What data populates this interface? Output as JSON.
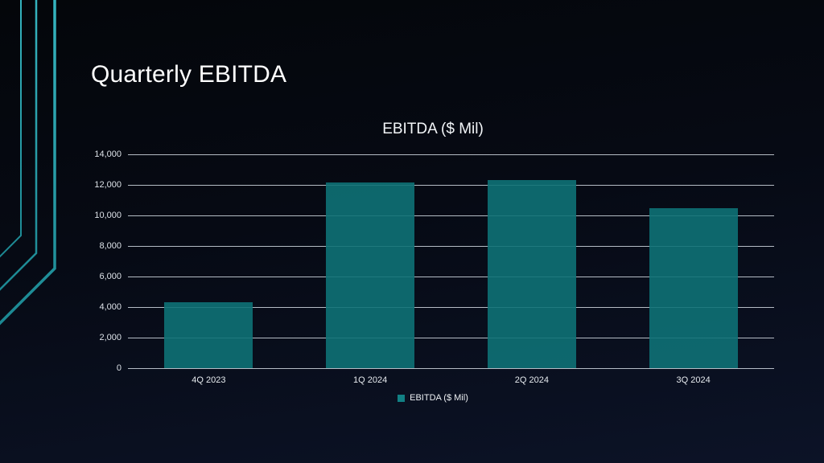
{
  "slide": {
    "title": "Quarterly EBITDA"
  },
  "chart_data": {
    "type": "bar",
    "title": "EBITDA ($ Mil)",
    "categories": [
      "4Q 2023",
      "1Q 2024",
      "2Q 2024",
      "3Q 2024"
    ],
    "values": [
      4300,
      12150,
      12300,
      10450
    ],
    "series_name": "EBITDA ($ Mil)",
    "xlabel": "",
    "ylabel": "",
    "ylim": [
      0,
      14000
    ],
    "yticks": [
      {
        "value": 0,
        "label": "0"
      },
      {
        "value": 2000,
        "label": "2,000"
      },
      {
        "value": 4000,
        "label": "4,000"
      },
      {
        "value": 6000,
        "label": "6,000"
      },
      {
        "value": 8000,
        "label": "8,000"
      },
      {
        "value": 10000,
        "label": "10,000"
      },
      {
        "value": 12000,
        "label": "12,000"
      },
      {
        "value": 14000,
        "label": "14,000"
      }
    ],
    "grid": true,
    "legend": {
      "label": "EBITDA ($ Mil)",
      "position": "bottom"
    }
  },
  "colors": {
    "bar": "#0e7176",
    "legend_marker": "#128084",
    "gridline": "#cdd5dd",
    "title_text": "#ffffff",
    "decor_top": "#35b4bf",
    "decor_bottom": "#1b8791",
    "background_top": "#04060a",
    "background_bottom": "#0c1327"
  }
}
